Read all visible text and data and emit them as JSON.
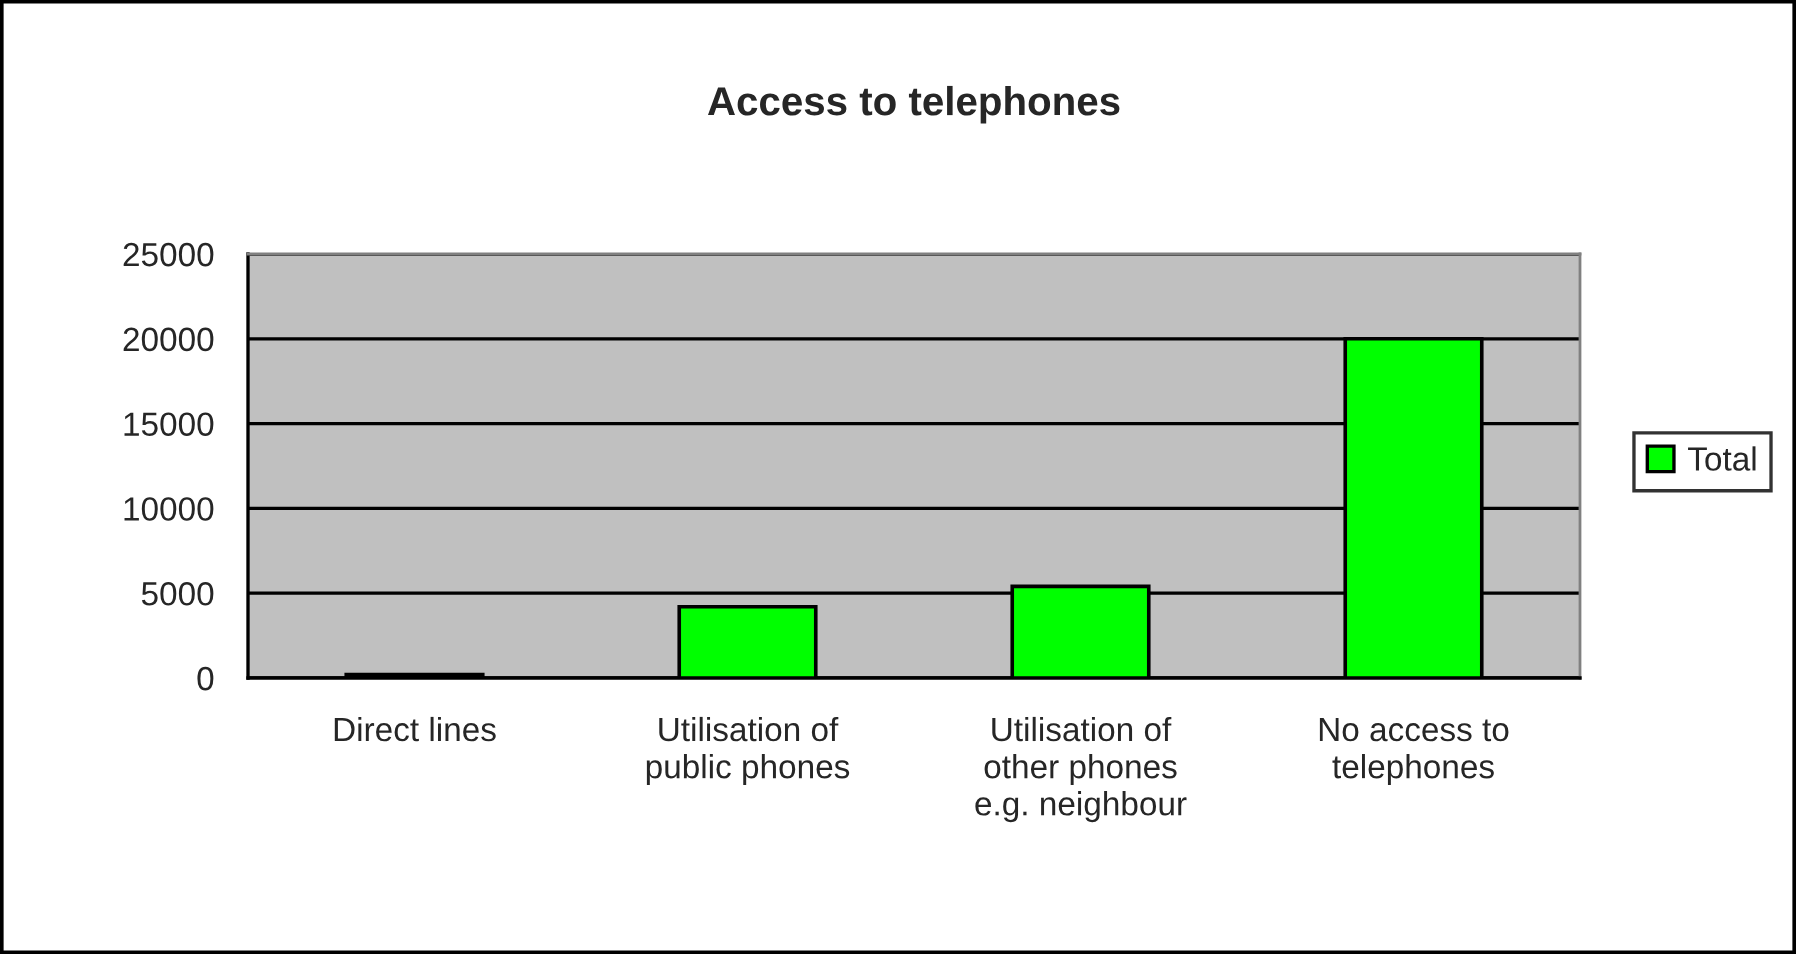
{
  "chart_data": {
    "type": "bar",
    "title": "Access to telephones",
    "categories": [
      "Direct lines",
      "Utilisation of\npublic phones",
      "Utilisation of\nother phones\ne.g. neighbour",
      "No access to\ntelephones"
    ],
    "series": [
      {
        "name": "Total",
        "color": "#00ff00",
        "values": [
          200,
          4200,
          5400,
          20000
        ]
      }
    ],
    "ylim": [
      0,
      25000
    ],
    "yticks": [
      0,
      5000,
      10000,
      15000,
      20000,
      25000
    ],
    "grid": "y",
    "legend": "right"
  }
}
